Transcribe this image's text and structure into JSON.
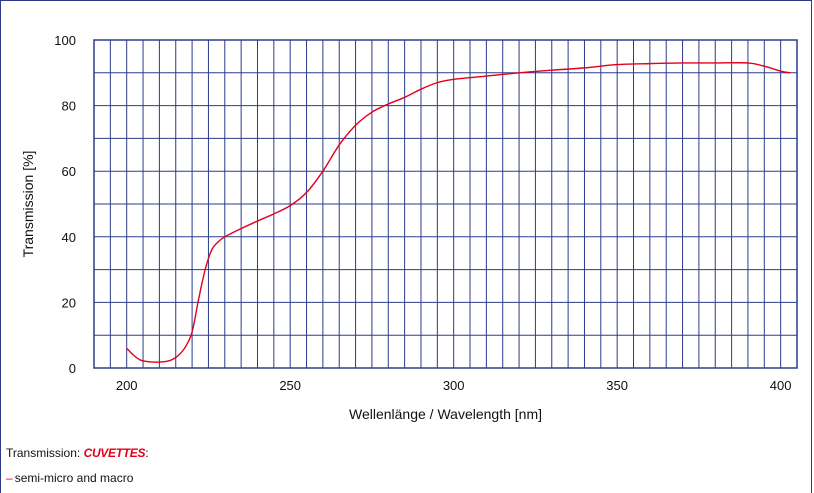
{
  "chart_data": {
    "type": "line",
    "title": "",
    "xlabel": "Wellenlänge / Wavelength [nm]",
    "ylabel": "Transmission [%]",
    "xlim": [
      190,
      405
    ],
    "ylim": [
      0,
      100
    ],
    "x_ticks": [
      200,
      250,
      300,
      350,
      400
    ],
    "y_ticks": [
      0,
      20,
      40,
      60,
      80,
      100
    ],
    "grid": true,
    "series": [
      {
        "name": "semi-micro and macro",
        "color": "#e3001b",
        "x": [
          200,
          202,
          204,
          206,
          208,
          210,
          212,
          214,
          216,
          218,
          220,
          222,
          224,
          226,
          228,
          230,
          235,
          240,
          245,
          250,
          255,
          260,
          265,
          270,
          275,
          280,
          285,
          290,
          295,
          300,
          310,
          320,
          330,
          340,
          350,
          360,
          370,
          380,
          390,
          395,
          400,
          403
        ],
        "y": [
          6,
          4,
          2.5,
          2,
          1.8,
          1.8,
          2,
          2.6,
          4,
          6.5,
          11,
          21,
          30,
          36,
          38.5,
          40,
          42.5,
          44.8,
          47,
          49.5,
          53.5,
          60,
          68,
          74,
          78,
          80.5,
          82.5,
          85,
          87,
          88,
          89,
          90,
          90.8,
          91.5,
          92.5,
          92.8,
          93,
          93,
          93,
          92,
          90.5,
          90
        ]
      }
    ]
  },
  "caption": {
    "prefix": "Transmission: ",
    "brand": "CUVETTES",
    "suffix": ":"
  },
  "legend": {
    "dash": "–",
    "label": "semi-micro and macro"
  }
}
